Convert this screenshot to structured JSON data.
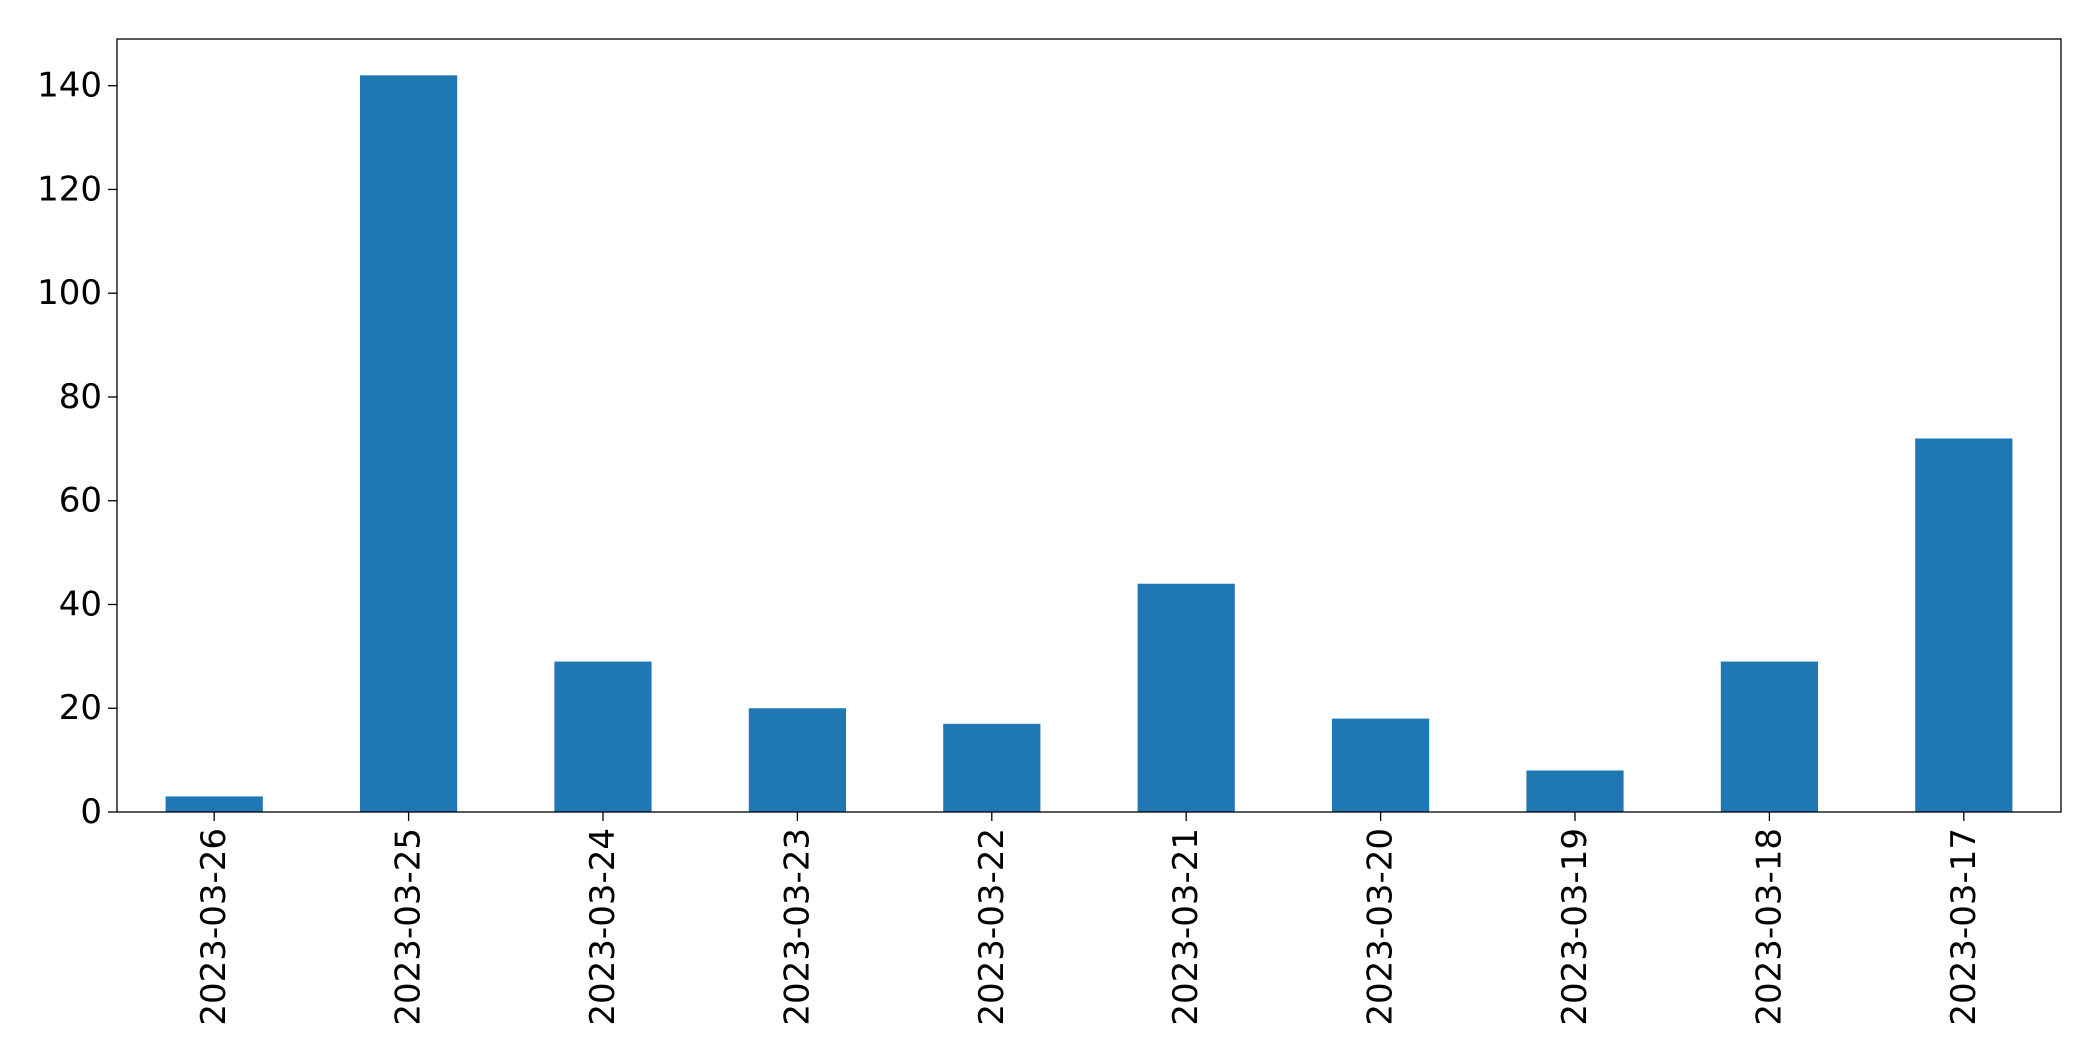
{
  "chart_data": {
    "type": "bar",
    "title": "",
    "xlabel": "",
    "ylabel": "",
    "categories": [
      "2023-03-26",
      "2023-03-25",
      "2023-03-24",
      "2023-03-23",
      "2023-03-22",
      "2023-03-21",
      "2023-03-20",
      "2023-03-19",
      "2023-03-18",
      "2023-03-17"
    ],
    "values": [
      3,
      142,
      29,
      20,
      17,
      44,
      18,
      8,
      29,
      72
    ],
    "ylim": [
      0,
      149
    ],
    "yticks": [
      0,
      20,
      40,
      60,
      80,
      100,
      120,
      140
    ],
    "grid": false,
    "legend": "none",
    "bar_color": "#1f77b4"
  }
}
